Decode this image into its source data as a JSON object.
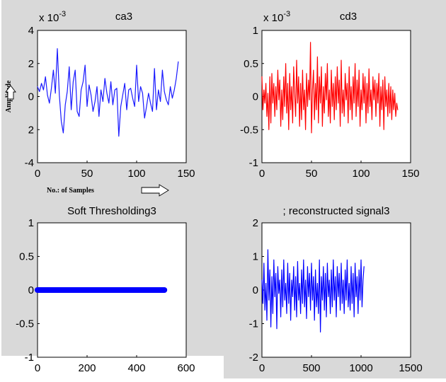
{
  "chart_data": [
    {
      "type": "line",
      "title": "ca3",
      "multiplier": "x 10",
      "exponent": "-3",
      "xlim": [
        0,
        150
      ],
      "ylim": [
        -4,
        4
      ],
      "xticks": [
        "0",
        "50",
        "100",
        "150"
      ],
      "yticks": [
        "4",
        "2",
        "0",
        "2",
        "-4"
      ],
      "ylabel": "Amplitude",
      "xlabel": "No.: of Samples",
      "color": "#1a1aff",
      "series": [
        {
          "x_start": 0,
          "x_step": 2,
          "values": [
            0.6,
            0.3,
            0.8,
            0.4,
            1.2,
            0.1,
            -0.4,
            0.5,
            1.6,
            0.2,
            2.9,
            0.1,
            -1.5,
            -2.2,
            -0.5,
            0.3,
            1.8,
            -0.8,
            0.9,
            1.6,
            -0.9,
            -1.2,
            0.4,
            0.9,
            1.9,
            -0.6,
            0.7,
            0.1,
            -0.9,
            -0.3,
            0.6,
            -1.2,
            0.4,
            -0.3,
            1.1,
            0.2,
            -0.4,
            0.9,
            -0.5,
            0.4,
            0.5,
            -2.4,
            -0.6,
            0.1,
            0.8,
            -0.8,
            0.4,
            0.5,
            -0.1,
            -0.6,
            1.9,
            -0.3,
            0.6,
            0.2,
            -1.3,
            -0.6,
            0.2,
            -0.4,
            -0.9,
            1.7,
            -0.8,
            0.4,
            -0.3,
            1.6,
            0.3,
            -0.2,
            -0.5,
            0.6,
            -0.1,
            0.4,
            1.1,
            2.1
          ]
        }
      ]
    },
    {
      "type": "line",
      "title": "cd3",
      "multiplier": "x 10",
      "exponent": "-3",
      "xlim": [
        0,
        150
      ],
      "ylim": [
        -1,
        1
      ],
      "xticks": [
        "0",
        "50",
        "100",
        "150"
      ],
      "yticks": [
        "1",
        "0.5",
        "0",
        "-0.5",
        "-1"
      ],
      "color": "#ff0000",
      "series": [
        {
          "x_start": 0,
          "x_step": 1,
          "values": [
            0.3,
            -0.2,
            0.1,
            -0.1,
            0.2,
            -0.3,
            0.05,
            -0.5,
            0.3,
            -0.4,
            0.35,
            -0.1,
            0.2,
            -0.3,
            0.15,
            -0.2,
            0.4,
            -0.05,
            0.25,
            -0.45,
            0.1,
            -0.35,
            0.3,
            -0.15,
            0.5,
            -0.25,
            0.2,
            -0.5,
            0.35,
            -0.2,
            0.15,
            -0.4,
            0.45,
            0.05,
            -0.3,
            0.55,
            -0.1,
            0.3,
            -0.45,
            0.2,
            -0.35,
            0.4,
            -0.2,
            0.1,
            -0.5,
            0.35,
            -0.15,
            0.25,
            -0.05,
            0.82,
            -0.55,
            0.1,
            0.4,
            -0.35,
            0.2,
            -0.2,
            0.6,
            -0.4,
            0.3,
            -0.1,
            0.45,
            -0.45,
            0.15,
            -0.25,
            0.35,
            -0.05,
            0.5,
            -0.3,
            0.1,
            -0.4,
            0.4,
            -0.15,
            0.2,
            -0.35,
            0.3,
            -0.2,
            0.45,
            -0.1,
            0.25,
            -0.45,
            0.55,
            -0.25,
            0.1,
            -0.3,
            0.35,
            -0.05,
            0.2,
            -0.4,
            0.45,
            -0.2,
            0.15,
            -0.35,
            0.3,
            -0.1,
            0.5,
            -0.3,
            0.25,
            -0.15,
            0.4,
            -0.45,
            0.1,
            -0.2,
            0.35,
            -0.1,
            0.3,
            -0.4,
            0.2,
            -0.25,
            0.42,
            -0.15,
            0.1,
            -0.35,
            0.3,
            -0.05,
            0.25,
            -0.3,
            0.2,
            -0.1,
            0.35,
            -0.45,
            0.15,
            -0.2,
            0.25,
            -0.5,
            0.3,
            -0.15,
            0.1,
            -0.3,
            0.2,
            -0.25,
            0.15,
            -0.35,
            0.1,
            -0.2,
            0.05,
            -0.3,
            -0.1,
            -0.2
          ]
        }
      ]
    },
    {
      "type": "line",
      "title": "Soft Thresholding3",
      "xlim": [
        0,
        600
      ],
      "ylim": [
        -1,
        1
      ],
      "xticks": [
        "0",
        "200",
        "400",
        "600"
      ],
      "yticks": [
        "1",
        "0.5",
        "0",
        "-0.5",
        "-1"
      ],
      "color": "#0000ff",
      "series": [
        {
          "x": [
            0,
            512
          ],
          "values": [
            0,
            0
          ]
        }
      ]
    },
    {
      "type": "line",
      "title": "; reconstructed signal3",
      "xlim": [
        0,
        1500
      ],
      "ylim": [
        -2,
        2
      ],
      "xticks": [
        "0",
        "500",
        "1000",
        "1500"
      ],
      "yticks": [
        "2",
        "1",
        "0",
        "-1",
        "-2"
      ],
      "color": "#0000ff",
      "series": [
        {
          "x_start": 0,
          "x_step": 10,
          "values": [
            0.3,
            -0.4,
            0.8,
            -0.6,
            0.2,
            -0.9,
            1.2,
            -0.3,
            0.6,
            -1.1,
            0.4,
            -0.7,
            0.9,
            -0.2,
            0.5,
            -1.15,
            0.7,
            -0.1,
            0.3,
            -0.8,
            0.6,
            -0.5,
            0.9,
            -0.3,
            0.2,
            -0.7,
            0.8,
            -0.4,
            0.5,
            -0.9,
            0.3,
            -0.2,
            0.7,
            -0.6,
            0.4,
            -0.8,
            0.85,
            -0.3,
            0.2,
            -0.7,
            0.6,
            -0.4,
            0.9,
            -0.5,
            0.3,
            -0.85,
            0.7,
            -0.2,
            0.5,
            -0.6,
            0.8,
            -0.3,
            0.4,
            -0.9,
            0.6,
            -0.5,
            0.2,
            -0.7,
            0.9,
            -1.25,
            0.4,
            -0.3,
            0.7,
            -0.6,
            0.5,
            -0.8,
            0.8,
            -0.2,
            0.3,
            -0.7,
            0.6,
            -0.5,
            0.9,
            -0.3,
            0.4,
            -0.8,
            0.7,
            -0.2,
            0.5,
            -0.6,
            0.8,
            -0.4,
            0.3,
            -0.7,
            0.6,
            -0.3,
            0.9,
            -0.5,
            0.2,
            -0.6,
            0.7,
            -0.4,
            0.5,
            -0.8,
            0.8,
            -0.2,
            0.4,
            -0.7,
            0.6,
            -0.3,
            0.9,
            -0.5,
            0.3,
            0.7
          ]
        }
      ]
    }
  ]
}
